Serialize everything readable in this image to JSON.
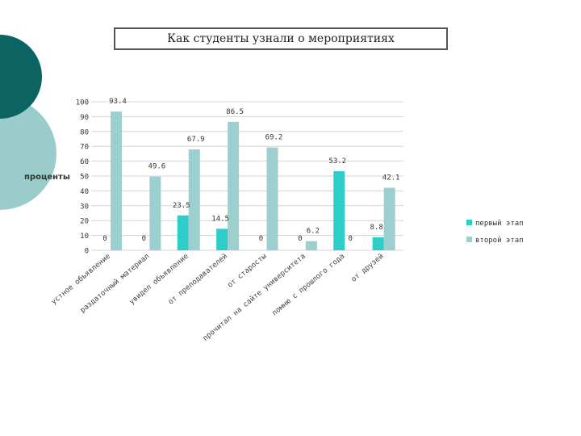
{
  "chart_data": {
    "type": "bar",
    "title": "Как студенты узнали о мероприятиях",
    "ylabel": "проценты",
    "xlabel": "",
    "ylim": [
      0,
      100
    ],
    "yticks": [
      0,
      10,
      20,
      30,
      40,
      50,
      60,
      70,
      80,
      90,
      100
    ],
    "categories": [
      "устное объявление",
      "раздаточный материал",
      "увидел объявление",
      "от преподавателей",
      "от старосты",
      "прочитал на сайте университета",
      "помню с прошлого года",
      "от друзей"
    ],
    "series": [
      {
        "name": "первый этап",
        "values": [
          0,
          0,
          23.5,
          14.5,
          0,
          0,
          53.2,
          8.8
        ],
        "labels": [
          "0",
          "0",
          "23.5",
          "14.5",
          "0",
          "0",
          "53.2",
          "8.8"
        ]
      },
      {
        "name": "второй этап",
        "values": [
          93.4,
          49.6,
          67.9,
          86.5,
          69.2,
          6.2,
          0,
          42.1
        ],
        "labels": [
          "93.4",
          "49.6",
          "67.9",
          "86.5",
          "69.2",
          "6.2",
          "0",
          "42.1"
        ]
      }
    ],
    "legend_position": "right",
    "colors": {
      "first": "#2ecdc7",
      "second": "#9ccfcd"
    },
    "grid": true
  },
  "decor_colors": {
    "dark": "#0b6461",
    "light": "#9acccb"
  }
}
